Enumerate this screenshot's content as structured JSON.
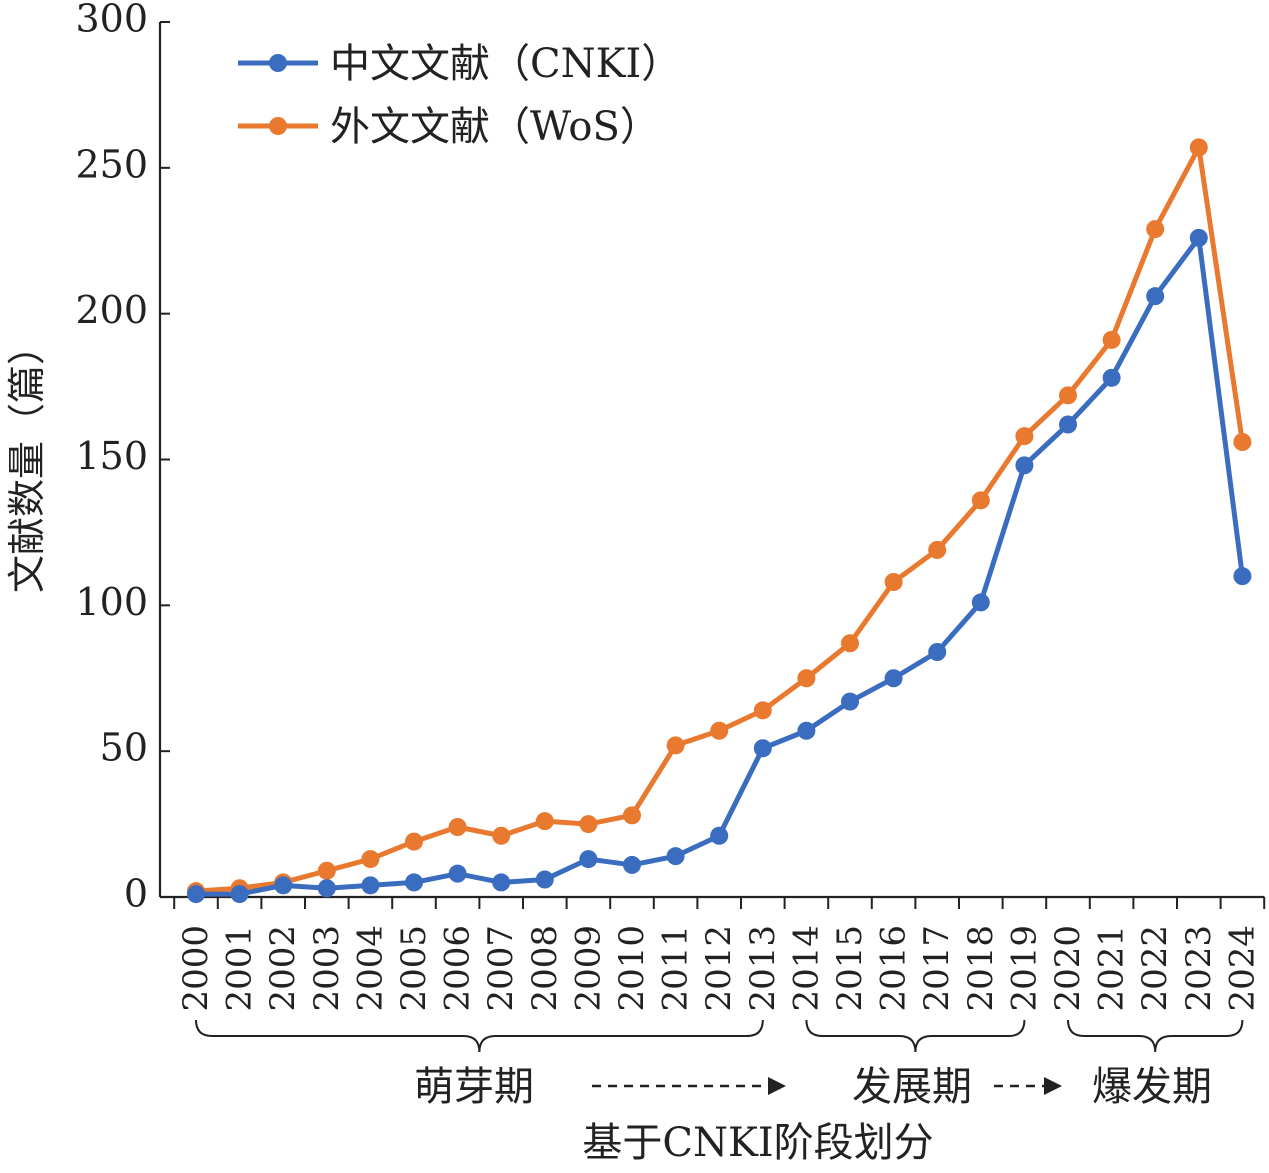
{
  "chart_data": {
    "type": "line",
    "ylabel": "文献数量（篇）",
    "ylim": [
      0,
      300
    ],
    "yticks": [
      0,
      50,
      100,
      150,
      200,
      250,
      300
    ],
    "x": [
      "2000",
      "2001",
      "2002",
      "2003",
      "2004",
      "2005",
      "2006",
      "2007",
      "2008",
      "2009",
      "2010",
      "2011",
      "2012",
      "2013",
      "2014",
      "2015",
      "2016",
      "2017",
      "2018",
      "2019",
      "2020",
      "2021",
      "2022",
      "2023",
      "2024"
    ],
    "series": [
      {
        "name": "中文文献（CNKI）",
        "color": "#3a6cbf",
        "values": [
          1,
          1,
          4,
          3,
          4,
          5,
          8,
          5,
          6,
          13,
          11,
          14,
          21,
          51,
          57,
          67,
          75,
          84,
          101,
          148,
          162,
          178,
          206,
          226,
          110
        ]
      },
      {
        "name": "外文文献（WoS）",
        "color": "#e8792e",
        "values": [
          2,
          3,
          5,
          9,
          13,
          19,
          24,
          21,
          26,
          25,
          28,
          52,
          57,
          64,
          75,
          87,
          108,
          119,
          136,
          158,
          172,
          191,
          229,
          257,
          156
        ]
      }
    ],
    "legend_position": "top-left",
    "grid": false,
    "phases": [
      {
        "label": "萌芽期",
        "from": "2000",
        "to": "2013"
      },
      {
        "label": "发展期",
        "from": "2014",
        "to": "2019"
      },
      {
        "label": "爆发期",
        "from": "2020",
        "to": "2024"
      }
    ],
    "caption": "基于CNKI阶段划分"
  }
}
